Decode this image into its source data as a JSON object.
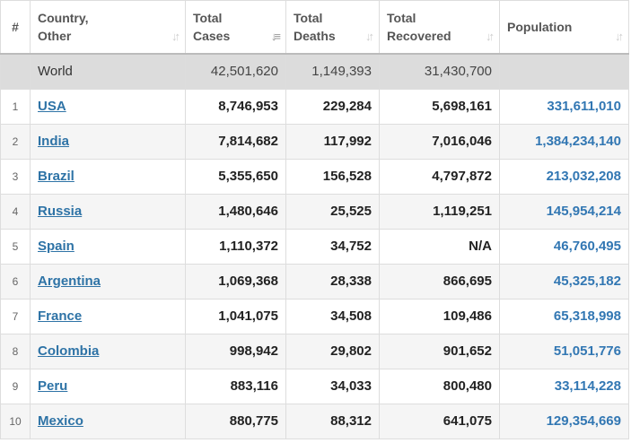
{
  "headers": {
    "index": "#",
    "country": [
      "Country,",
      "Other"
    ],
    "total_cases": [
      "Total",
      "Cases"
    ],
    "total_deaths": [
      "Total",
      "Deaths"
    ],
    "total_recovered": [
      "Total",
      "Recovered"
    ],
    "population": [
      "Population"
    ]
  },
  "sort_icons": {
    "country": "sort-icon",
    "total_cases": "sort-desc-active-icon",
    "total_deaths": "sort-icon",
    "total_recovered": "sort-icon",
    "population": "sort-icon"
  },
  "world": {
    "name": "World",
    "total_cases": "42,501,620",
    "total_deaths": "1,149,393",
    "total_recovered": "31,430,700",
    "population": ""
  },
  "rows": [
    {
      "index": "1",
      "country": "USA",
      "total_cases": "8,746,953",
      "total_deaths": "229,284",
      "total_recovered": "5,698,161",
      "population": "331,611,010"
    },
    {
      "index": "2",
      "country": "India",
      "total_cases": "7,814,682",
      "total_deaths": "117,992",
      "total_recovered": "7,016,046",
      "population": "1,384,234,140"
    },
    {
      "index": "3",
      "country": "Brazil",
      "total_cases": "5,355,650",
      "total_deaths": "156,528",
      "total_recovered": "4,797,872",
      "population": "213,032,208"
    },
    {
      "index": "4",
      "country": "Russia",
      "total_cases": "1,480,646",
      "total_deaths": "25,525",
      "total_recovered": "1,119,251",
      "population": "145,954,214"
    },
    {
      "index": "5",
      "country": "Spain",
      "total_cases": "1,110,372",
      "total_deaths": "34,752",
      "total_recovered": "N/A",
      "population": "46,760,495"
    },
    {
      "index": "6",
      "country": "Argentina",
      "total_cases": "1,069,368",
      "total_deaths": "28,338",
      "total_recovered": "866,695",
      "population": "45,325,182"
    },
    {
      "index": "7",
      "country": "France",
      "total_cases": "1,041,075",
      "total_deaths": "34,508",
      "total_recovered": "109,486",
      "population": "65,318,998"
    },
    {
      "index": "8",
      "country": "Colombia",
      "total_cases": "998,942",
      "total_deaths": "29,802",
      "total_recovered": "901,652",
      "population": "51,051,776"
    },
    {
      "index": "9",
      "country": "Peru",
      "total_cases": "883,116",
      "total_deaths": "34,033",
      "total_recovered": "800,480",
      "population": "33,114,228"
    },
    {
      "index": "10",
      "country": "Mexico",
      "total_cases": "880,775",
      "total_deaths": "88,312",
      "total_recovered": "641,075",
      "population": "129,354,669"
    }
  ],
  "colors": {
    "link": "#2e73a6",
    "population": "#3277b3",
    "world_row_bg": "#dcdcdc",
    "alt_row_bg": "#f5f5f5"
  }
}
